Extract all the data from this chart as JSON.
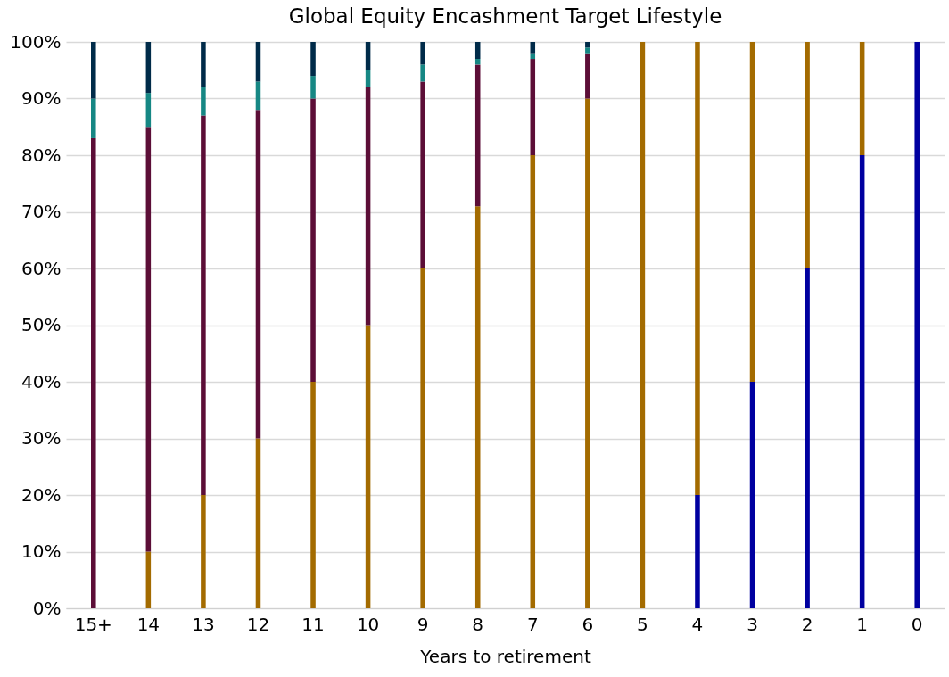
{
  "chart_data": {
    "type": "bar",
    "stacked": true,
    "title": "Global Equity Encashment Target Lifestyle",
    "xlabel": "Years to retirement",
    "categories": [
      "15+",
      "14",
      "13",
      "12",
      "11",
      "10",
      "9",
      "8",
      "7",
      "6",
      "5",
      "4",
      "3",
      "2",
      "1",
      "0"
    ],
    "series": [
      {
        "color": "#0000a0",
        "values": [
          0,
          0,
          0,
          0,
          0,
          0,
          0,
          0,
          0,
          0,
          0,
          20,
          40,
          60,
          80,
          100
        ]
      },
      {
        "color": "#a36b00",
        "values": [
          0,
          10,
          20,
          30,
          40,
          50,
          60,
          71,
          80,
          90,
          100,
          80,
          60,
          40,
          20,
          0
        ]
      },
      {
        "color": "#5c0e37",
        "values": [
          83,
          75,
          67,
          58,
          50,
          42,
          33,
          25,
          17,
          8,
          0,
          0,
          0,
          0,
          0,
          0
        ]
      },
      {
        "color": "#168784",
        "values": [
          7,
          6,
          5,
          5,
          4,
          3,
          3,
          1,
          1,
          1,
          0,
          0,
          0,
          0,
          0,
          0
        ]
      },
      {
        "color": "#002b49",
        "values": [
          10,
          9,
          8,
          7,
          6,
          5,
          4,
          3,
          2,
          1,
          0,
          0,
          0,
          0,
          0,
          0
        ]
      }
    ],
    "ylim": [
      0,
      100
    ],
    "yticks": [
      {
        "value": 0,
        "label": "0%"
      },
      {
        "value": 10,
        "label": "10%"
      },
      {
        "value": 20,
        "label": "20%"
      },
      {
        "value": 30,
        "label": "30%"
      },
      {
        "value": 40,
        "label": "40%"
      },
      {
        "value": 50,
        "label": "50%"
      },
      {
        "value": 60,
        "label": "60%"
      },
      {
        "value": 70,
        "label": "70%"
      },
      {
        "value": 80,
        "label": "80%"
      },
      {
        "value": 90,
        "label": "90%"
      },
      {
        "value": 100,
        "label": "100%"
      }
    ],
    "grid": "y",
    "legend": false
  }
}
